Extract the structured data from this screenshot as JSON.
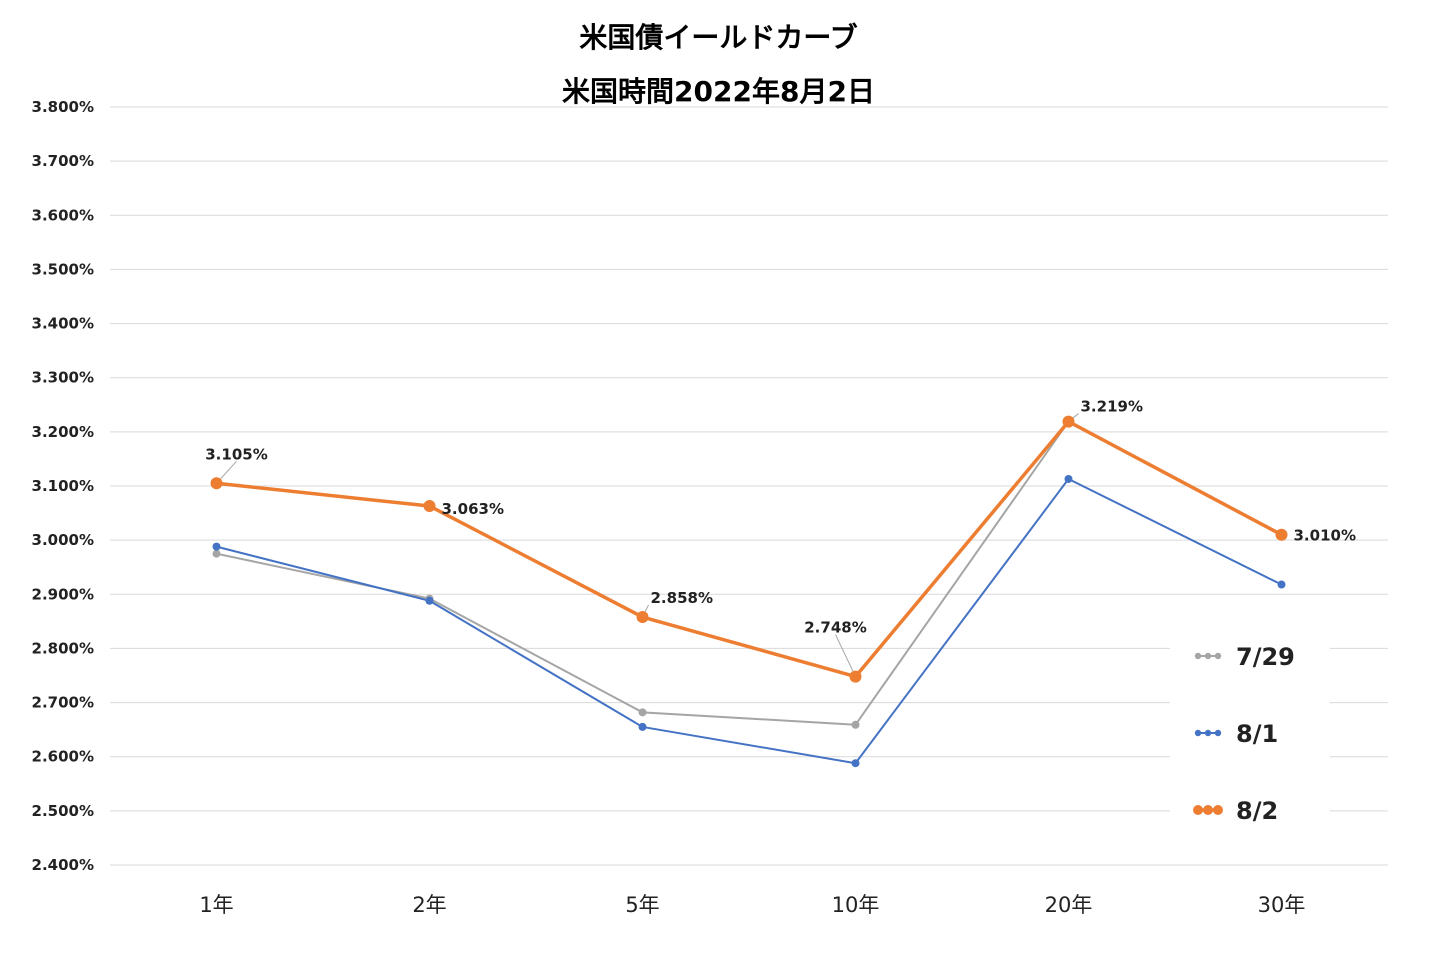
{
  "title_line1": "米国債イールドカーブ",
  "title_line2": "米国時間2022年8月2日",
  "chart_data": {
    "type": "line",
    "categories": [
      "1年",
      "2年",
      "5年",
      "10年",
      "20年",
      "30年"
    ],
    "ylim": [
      2.4,
      3.8
    ],
    "yticks": [
      "2.400%",
      "2.500%",
      "2.600%",
      "2.700%",
      "2.800%",
      "2.900%",
      "3.000%",
      "3.100%",
      "3.200%",
      "3.300%",
      "3.400%",
      "3.500%",
      "3.600%",
      "3.700%",
      "3.800%"
    ],
    "grid": true,
    "legend_position": "right",
    "series": [
      {
        "name": "7/29",
        "color": "#a5a5a5",
        "values": [
          2.975,
          2.892,
          2.682,
          2.659,
          3.219,
          null
        ]
      },
      {
        "name": "8/1",
        "color": "#4472c4",
        "values": [
          2.988,
          2.888,
          2.655,
          2.588,
          3.113,
          2.918
        ]
      },
      {
        "name": "8/2",
        "color": "#ed7d31",
        "values": [
          3.105,
          3.063,
          2.858,
          2.748,
          3.219,
          3.01
        ]
      }
    ],
    "data_labels": [
      {
        "series": "8/2",
        "index": 0,
        "text": "3.105%"
      },
      {
        "series": "8/2",
        "index": 1,
        "text": "3.063%"
      },
      {
        "series": "8/2",
        "index": 2,
        "text": "2.858%"
      },
      {
        "series": "8/2",
        "index": 3,
        "text": "2.748%"
      },
      {
        "series": "8/2",
        "index": 4,
        "text": "3.219%"
      },
      {
        "series": "8/2",
        "index": 5,
        "text": "3.010%"
      }
    ]
  }
}
